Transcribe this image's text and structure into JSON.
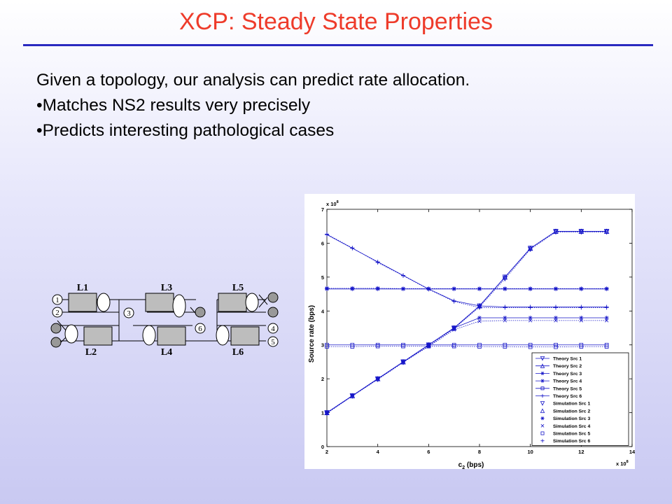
{
  "slide": {
    "title": "XCP: Steady State Properties",
    "lines": [
      "Given a topology, our analysis can predict rate allocation.",
      "•Matches NS2 results very precisely",
      "•Predicts interesting pathological cases"
    ]
  },
  "topology": {
    "links": [
      "L1",
      "L2",
      "L3",
      "L4",
      "L5",
      "L6"
    ],
    "sources": [
      "1",
      "2",
      "3",
      "4",
      "5",
      "6"
    ]
  },
  "colors": {
    "title": "#ee3b2a",
    "rule": "#2a2ac0",
    "series": "#1414c8"
  },
  "chart_data": {
    "type": "line",
    "xlabel": "c",
    "xlabel_sub": "2",
    "xlabel_unit": " (bps)",
    "ylabel": "Source rate (bps)",
    "x_exponent_label": "x 10",
    "x_exponent": "8",
    "y_exponent_label": "x 10",
    "y_exponent": "8",
    "xlim": [
      2,
      14
    ],
    "ylim": [
      0,
      7
    ],
    "x_ticks": [
      2,
      4,
      6,
      8,
      10,
      12,
      14
    ],
    "y_ticks": [
      0,
      1,
      2,
      3,
      4,
      5,
      6,
      7
    ],
    "grid": false,
    "legend_position": "bottom-right",
    "x": [
      2,
      3,
      4,
      5,
      6,
      7,
      8,
      9,
      10,
      11,
      12,
      13
    ],
    "series": [
      {
        "name": "Theory Src 1",
        "marker": "tri-down",
        "dashed": false,
        "values": [
          1.0,
          1.5,
          2.0,
          2.5,
          3.0,
          3.5,
          4.15,
          5.0,
          5.85,
          6.35,
          6.35,
          6.35
        ]
      },
      {
        "name": "Theory Src 2",
        "marker": "tri-up",
        "dashed": false,
        "values": [
          1.0,
          1.5,
          2.0,
          2.5,
          3.0,
          3.5,
          4.15,
          5.0,
          5.85,
          6.35,
          6.35,
          6.35
        ]
      },
      {
        "name": "Theory Src 3",
        "marker": "star",
        "dashed": false,
        "values": [
          4.65,
          4.65,
          4.65,
          4.65,
          4.65,
          4.65,
          4.65,
          4.65,
          4.65,
          4.65,
          4.65,
          4.65
        ]
      },
      {
        "name": "Theory Src 4",
        "marker": "star",
        "dashed": false,
        "values": [
          1.0,
          1.5,
          2.0,
          2.5,
          3.0,
          3.5,
          3.8,
          3.8,
          3.8,
          3.8,
          3.8,
          3.8
        ]
      },
      {
        "name": "Theory Src 5",
        "marker": "square",
        "dashed": false,
        "values": [
          3.0,
          3.0,
          3.0,
          3.0,
          3.0,
          3.0,
          3.0,
          3.0,
          3.0,
          3.0,
          3.0,
          3.0
        ]
      },
      {
        "name": "Theory Src 6",
        "marker": "plus",
        "dashed": false,
        "values": [
          6.25,
          5.85,
          5.45,
          5.05,
          4.65,
          4.3,
          4.15,
          4.12,
          4.12,
          4.12,
          4.12,
          4.12
        ]
      },
      {
        "name": "Simulation Src 1",
        "marker": "tri-down",
        "dashed": true,
        "values": [
          0.98,
          1.49,
          1.98,
          2.48,
          2.97,
          3.48,
          4.12,
          4.95,
          5.82,
          6.33,
          6.33,
          6.33
        ]
      },
      {
        "name": "Simulation Src 2",
        "marker": "tri-up",
        "dashed": true,
        "values": [
          1.0,
          1.5,
          2.0,
          2.5,
          3.0,
          3.5,
          4.15,
          5.0,
          5.85,
          6.35,
          6.35,
          6.35
        ]
      },
      {
        "name": "Simulation Src 3",
        "marker": "star",
        "dashed": true,
        "values": [
          4.67,
          4.67,
          4.67,
          4.66,
          4.66,
          4.66,
          4.66,
          4.66,
          4.66,
          4.66,
          4.66,
          4.66
        ]
      },
      {
        "name": "Simulation Src 4",
        "marker": "x",
        "dashed": true,
        "values": [
          1.0,
          1.5,
          2.0,
          2.5,
          2.95,
          3.45,
          3.7,
          3.72,
          3.72,
          3.72,
          3.72,
          3.72
        ]
      },
      {
        "name": "Simulation Src 5",
        "marker": "square",
        "dashed": true,
        "values": [
          2.95,
          2.95,
          2.96,
          2.96,
          2.96,
          2.96,
          2.95,
          2.95,
          2.94,
          2.94,
          2.95,
          2.95
        ]
      },
      {
        "name": "Simulation Src 6",
        "marker": "plus",
        "dashed": true,
        "values": [
          6.27,
          5.86,
          5.43,
          5.04,
          4.64,
          4.28,
          4.1,
          4.1,
          4.1,
          4.1,
          4.1,
          4.1
        ]
      }
    ]
  }
}
